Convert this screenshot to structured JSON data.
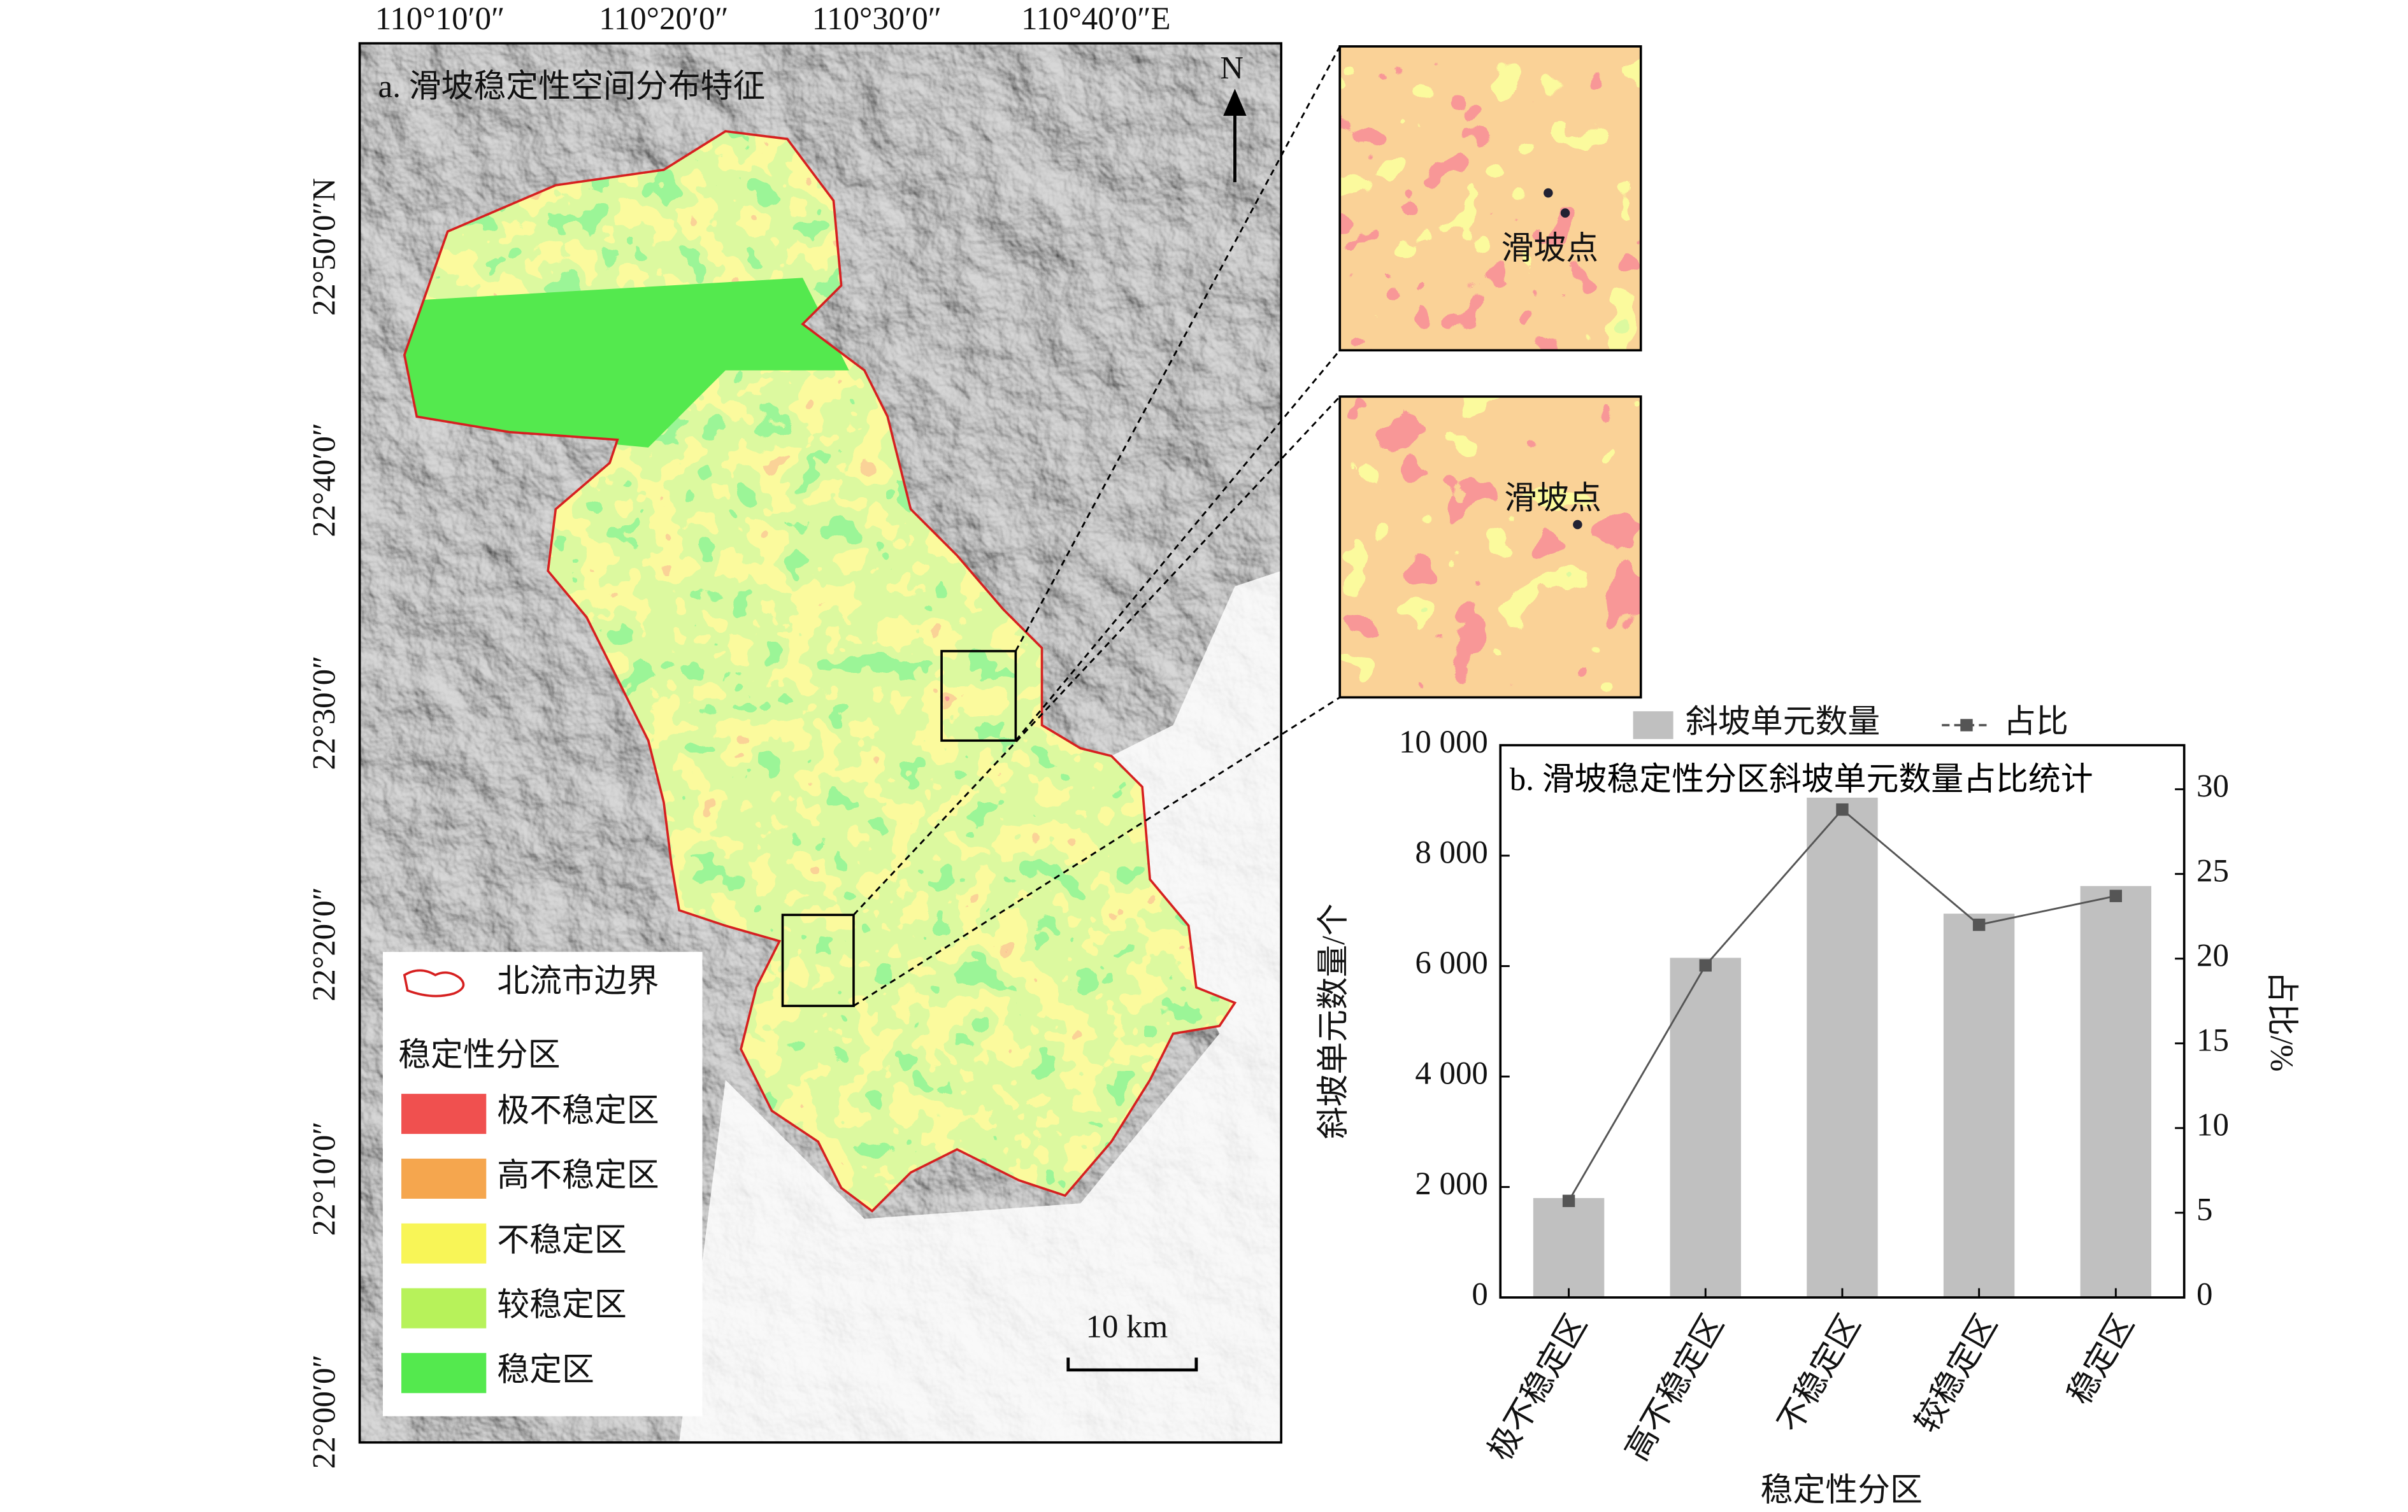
{
  "map": {
    "title": "a. 滑坡稳定性空间分布特征",
    "longitude_labels": [
      "110°10′0″",
      "110°20′0″",
      "110°30′0″",
      "110°40′0″E"
    ],
    "latitude_labels": [
      "22°50′0″N",
      "22°40′0″",
      "22°30′0″",
      "22°20′0″",
      "22°10′0″",
      "22°00′0″"
    ],
    "north": "N",
    "scale_bar": "10 km",
    "inset_labels": [
      "滑坡点",
      "滑坡点"
    ],
    "legend": {
      "boundary": "北流市边界",
      "title": "稳定性分区",
      "classes": [
        {
          "label": "极不稳定区",
          "color": "#f0504f"
        },
        {
          "label": "高不稳定区",
          "color": "#f5a64e"
        },
        {
          "label": "不稳定区",
          "color": "#f8f557"
        },
        {
          "label": "较稳定区",
          "color": "#b7f25a"
        },
        {
          "label": "稳定区",
          "color": "#54e94e"
        }
      ]
    }
  },
  "chart_data": {
    "type": "bar",
    "title": "b. 滑坡稳定性分区斜坡单元数量占比统计",
    "x_label": "稳定性分区",
    "y_label": "斜坡单元数量/个",
    "y2_label": "占比/%",
    "categories": [
      "极不稳定区",
      "高不稳定区",
      "不稳定区",
      "较稳定区",
      "稳定区"
    ],
    "series": [
      {
        "name": "斜坡单元数量",
        "color": "#c0c0c0",
        "values": [
          1800,
          6150,
          9050,
          6950,
          7450
        ]
      },
      {
        "name": "占比",
        "color": "#555555",
        "type": "line",
        "axis": "y2",
        "values": [
          5.7,
          19.6,
          28.8,
          22.0,
          23.7
        ]
      }
    ],
    "ylim": [
      0,
      10000
    ],
    "yticks": [
      0,
      {
        "value": 2000,
        "label": "2 000"
      },
      {
        "value": 4000,
        "label": "4 000"
      },
      {
        "value": 6000,
        "label": "6 000"
      },
      {
        "value": 8000,
        "label": "8 000"
      },
      {
        "value": 10000,
        "label": "10 000"
      }
    ],
    "y2lim": [
      0,
      32.6
    ],
    "y2ticks": [
      0,
      5,
      10,
      15,
      20,
      25,
      30
    ]
  }
}
